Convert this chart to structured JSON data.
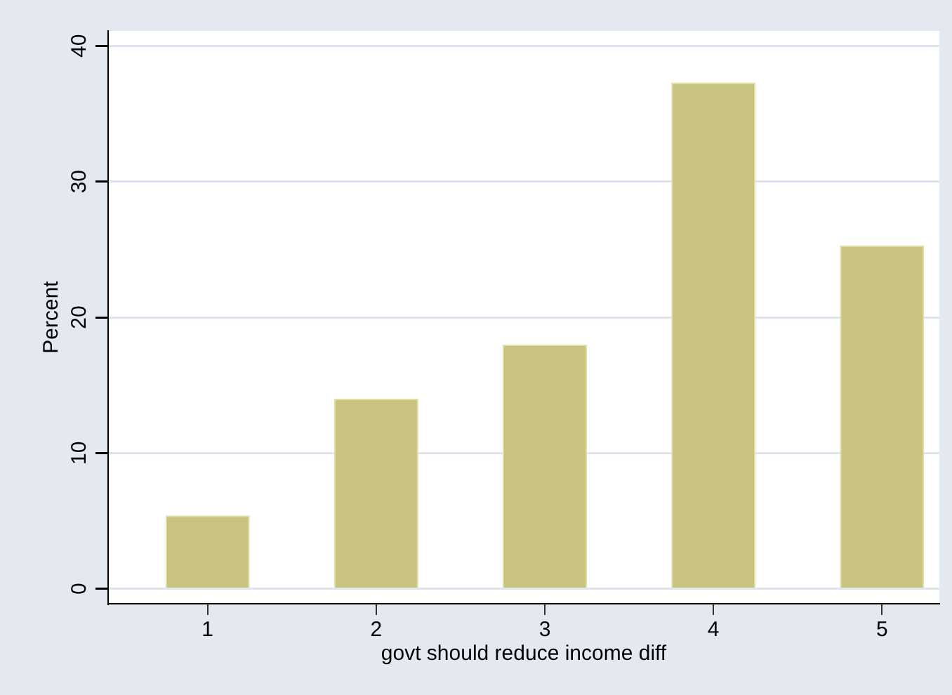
{
  "chart_data": {
    "type": "bar",
    "xlabel": "govt should reduce income diff",
    "ylabel": "Percent",
    "x": [
      1,
      2,
      3,
      4,
      5
    ],
    "values": [
      5.4,
      14.0,
      18.0,
      37.3,
      25.3
    ],
    "color": "#c9c380",
    "xlim": [
      0.41,
      5.34
    ],
    "xticks": [
      1,
      2,
      3,
      4,
      5
    ],
    "ylim": [
      -1.1,
      41.1
    ],
    "yticks": [
      0,
      10,
      20,
      30,
      40
    ],
    "grid": "y",
    "legend": false
  }
}
